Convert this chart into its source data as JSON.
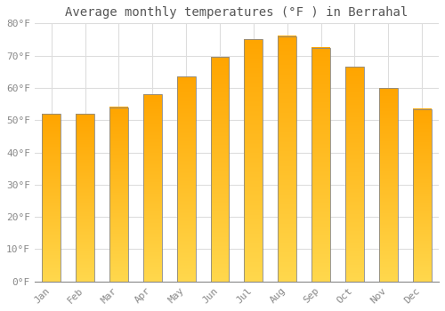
{
  "title": "Average monthly temperatures (°F ) in Berrahal",
  "months": [
    "Jan",
    "Feb",
    "Mar",
    "Apr",
    "May",
    "Jun",
    "Jul",
    "Aug",
    "Sep",
    "Oct",
    "Nov",
    "Dec"
  ],
  "values": [
    52,
    52,
    54,
    58,
    63.5,
    69.5,
    75,
    76,
    72.5,
    66.5,
    60,
    53.5
  ],
  "bar_color_top": "#FFA500",
  "bar_color_bottom": "#FFD84D",
  "bar_edge_color": "#888888",
  "ylim": [
    0,
    80
  ],
  "yticks": [
    0,
    10,
    20,
    30,
    40,
    50,
    60,
    70,
    80
  ],
  "ytick_labels": [
    "0°F",
    "10°F",
    "20°F",
    "30°F",
    "40°F",
    "50°F",
    "60°F",
    "70°F",
    "80°F"
  ],
  "background_color": "#FFFFFF",
  "grid_color": "#DDDDDD",
  "title_fontsize": 10,
  "tick_fontsize": 8,
  "bar_width": 0.55
}
